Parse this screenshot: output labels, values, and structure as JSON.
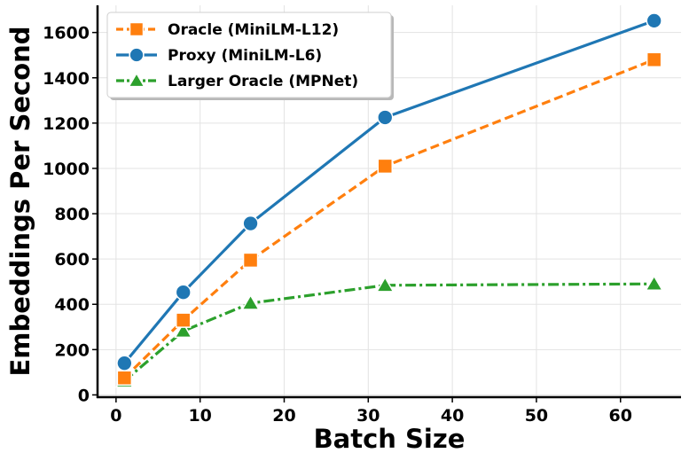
{
  "chart_data": {
    "type": "line",
    "title": "",
    "xlabel": "Batch Size",
    "ylabel": "Embeddings Per Second",
    "xlim": [
      -2.2,
      67.2
    ],
    "ylim": [
      -10,
      1720
    ],
    "xticks": [
      0,
      10,
      20,
      30,
      40,
      50,
      60
    ],
    "yticks": [
      0,
      200,
      400,
      600,
      800,
      1000,
      1200,
      1400,
      1600
    ],
    "grid": true,
    "legend_position": "top-left",
    "x": [
      1,
      8,
      16,
      32,
      64
    ],
    "series": [
      {
        "name": "Oracle (MiniLM-L12)",
        "values": [
          75,
          330,
          595,
          1010,
          1480
        ],
        "color": "#ff7f0e",
        "marker": "square",
        "line_style": "dashed"
      },
      {
        "name": "Proxy (MiniLM-L6)",
        "values": [
          140,
          453,
          757,
          1225,
          1652
        ],
        "color": "#1f77b4",
        "marker": "circle",
        "line_style": "solid"
      },
      {
        "name": "Larger Oracle (MPNet)",
        "values": [
          62,
          282,
          405,
          484,
          490
        ],
        "color": "#2ca02c",
        "marker": "triangle",
        "line_style": "dashdot"
      }
    ]
  }
}
